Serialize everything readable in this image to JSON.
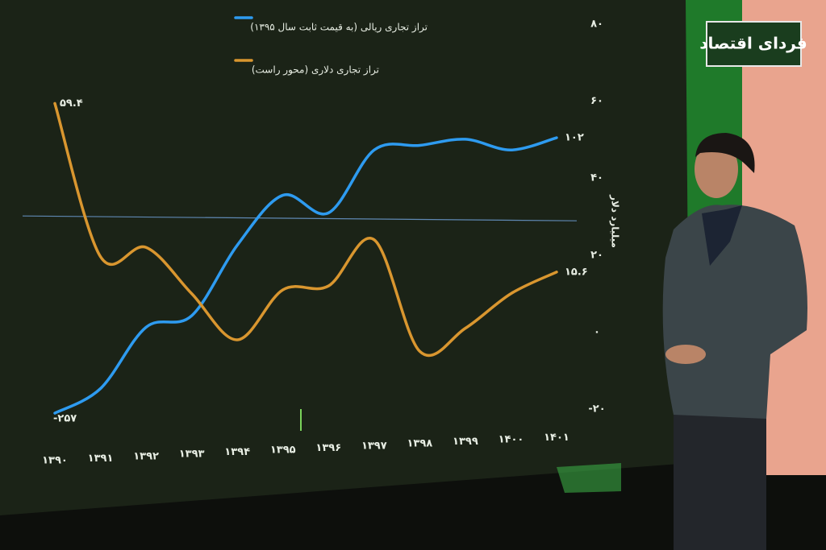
{
  "brand": "فردای اقتصاد",
  "chart_data": {
    "type": "line",
    "categories": [
      "۱۳۹۰",
      "۱۳۹۱",
      "۱۳۹۲",
      "۱۳۹۳",
      "۱۳۹۴",
      "۱۳۹۵",
      "۱۳۹۶",
      "۱۳۹۷",
      "۱۳۹۸",
      "۱۳۹۹",
      "۱۴۰۰",
      "۱۴۰۱"
    ],
    "series": [
      {
        "name": "تراز تجاری ریالی (به قیمت ثابت سال ۱۳۹۵)",
        "color": "#2e9bf0",
        "values": [
          -257,
          -225,
          -145,
          -130,
          -38,
          27,
          4,
          86,
          92,
          100,
          86,
          102
        ],
        "value_labels": [
          "-۲۵۷",
          null,
          null,
          null,
          null,
          null,
          null,
          null,
          null,
          null,
          null,
          "۱۰۲"
        ]
      },
      {
        "name": "تراز تجاری دلاری (محور راست)",
        "color": "#d9962f",
        "axis": "y2",
        "values": [
          59.4,
          19.6,
          22,
          10,
          -2,
          11,
          12,
          24,
          -5,
          1,
          10,
          15.6
        ],
        "value_labels": [
          "۵۹.۴",
          null,
          null,
          null,
          null,
          null,
          null,
          null,
          null,
          null,
          null,
          "۱۵.۶"
        ]
      }
    ],
    "ylim": [
      -300,
      250
    ],
    "y2lim": [
      -20,
      80
    ],
    "y2ticks": [
      {
        "value": 80,
        "label": "۸۰"
      },
      {
        "value": 60,
        "label": "۶۰"
      },
      {
        "value": 40,
        "label": "۴۰"
      },
      {
        "value": 20,
        "label": "۲۰"
      },
      {
        "value": 0,
        "label": "۰"
      },
      {
        "value": -20,
        "label": "-۲۰"
      }
    ],
    "y2label": "میلیارد دلار"
  }
}
